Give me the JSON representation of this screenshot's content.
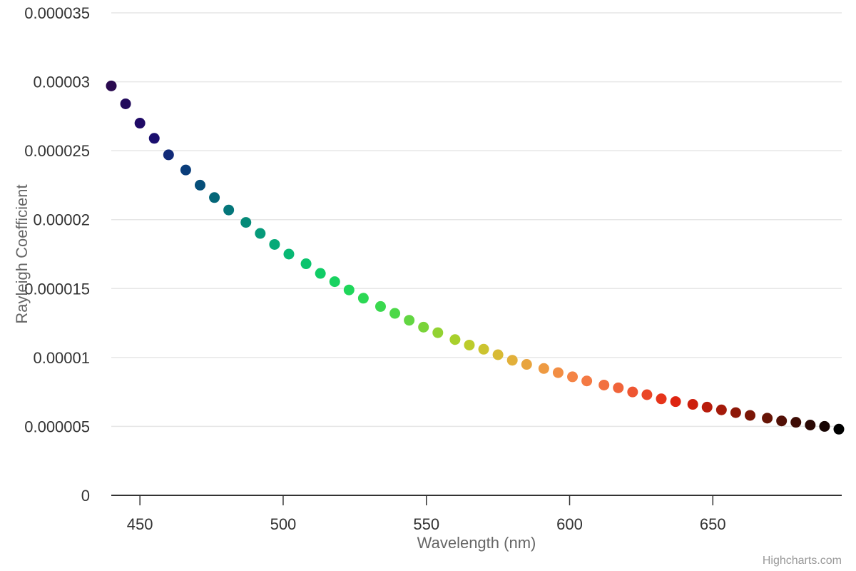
{
  "chart_data": {
    "type": "scatter",
    "xlabel": "Wavelength (nm)",
    "ylabel": "Rayleigh Coefficient",
    "xlim": [
      440,
      695
    ],
    "ylim": [
      0,
      3.5e-05
    ],
    "x_ticks": [
      {
        "value": 450,
        "label": "450"
      },
      {
        "value": 500,
        "label": "500"
      },
      {
        "value": 550,
        "label": "550"
      },
      {
        "value": 600,
        "label": "600"
      },
      {
        "value": 650,
        "label": "650"
      }
    ],
    "y_ticks": [
      {
        "value": 0,
        "label": "0"
      },
      {
        "value": 5e-06,
        "label": "0.000005"
      },
      {
        "value": 1e-05,
        "label": "0.00001"
      },
      {
        "value": 1.5e-05,
        "label": "0.000015"
      },
      {
        "value": 2e-05,
        "label": "0.00002"
      },
      {
        "value": 2.5e-05,
        "label": "0.000025"
      },
      {
        "value": 3e-05,
        "label": "0.00003"
      },
      {
        "value": 3.5e-05,
        "label": "0.000035"
      }
    ],
    "grid": "horizontal",
    "legend": "none",
    "credit": "Highcharts.com",
    "points": [
      {
        "x": 440,
        "y": 2.97e-05,
        "color": "#2a0a4f"
      },
      {
        "x": 445,
        "y": 2.84e-05,
        "color": "#220a5c"
      },
      {
        "x": 450,
        "y": 2.7e-05,
        "color": "#1f0a66"
      },
      {
        "x": 455,
        "y": 2.59e-05,
        "color": "#1a0f6e"
      },
      {
        "x": 460,
        "y": 2.47e-05,
        "color": "#112a78"
      },
      {
        "x": 466,
        "y": 2.36e-05,
        "color": "#0a3d7a"
      },
      {
        "x": 471,
        "y": 2.25e-05,
        "color": "#064f7a"
      },
      {
        "x": 476,
        "y": 2.16e-05,
        "color": "#046678"
      },
      {
        "x": 481,
        "y": 2.07e-05,
        "color": "#04767a"
      },
      {
        "x": 487,
        "y": 1.98e-05,
        "color": "#058a78"
      },
      {
        "x": 492,
        "y": 1.9e-05,
        "color": "#069a7a"
      },
      {
        "x": 497,
        "y": 1.82e-05,
        "color": "#07aa78"
      },
      {
        "x": 502,
        "y": 1.75e-05,
        "color": "#08b874"
      },
      {
        "x": 508,
        "y": 1.68e-05,
        "color": "#0cc46e"
      },
      {
        "x": 513,
        "y": 1.61e-05,
        "color": "#10cc66"
      },
      {
        "x": 518,
        "y": 1.55e-05,
        "color": "#18d260"
      },
      {
        "x": 523,
        "y": 1.49e-05,
        "color": "#1fd65a"
      },
      {
        "x": 528,
        "y": 1.43e-05,
        "color": "#2cd854"
      },
      {
        "x": 534,
        "y": 1.37e-05,
        "color": "#3ad84e"
      },
      {
        "x": 539,
        "y": 1.32e-05,
        "color": "#4cd848"
      },
      {
        "x": 544,
        "y": 1.27e-05,
        "color": "#62d642"
      },
      {
        "x": 549,
        "y": 1.22e-05,
        "color": "#7ad43a"
      },
      {
        "x": 554,
        "y": 1.18e-05,
        "color": "#92d232"
      },
      {
        "x": 560,
        "y": 1.13e-05,
        "color": "#a8d02c"
      },
      {
        "x": 565,
        "y": 1.09e-05,
        "color": "#bccc2c"
      },
      {
        "x": 570,
        "y": 1.06e-05,
        "color": "#ccc430"
      },
      {
        "x": 575,
        "y": 1.02e-05,
        "color": "#d8ba34"
      },
      {
        "x": 580,
        "y": 9.8e-06,
        "color": "#e2b03a"
      },
      {
        "x": 585,
        "y": 9.5e-06,
        "color": "#e8a43e"
      },
      {
        "x": 591,
        "y": 9.2e-06,
        "color": "#ee9a42"
      },
      {
        "x": 596,
        "y": 8.9e-06,
        "color": "#f28e44"
      },
      {
        "x": 601,
        "y": 8.6e-06,
        "color": "#f48446"
      },
      {
        "x": 606,
        "y": 8.3e-06,
        "color": "#f47a44"
      },
      {
        "x": 612,
        "y": 8e-06,
        "color": "#f27040"
      },
      {
        "x": 617,
        "y": 7.8e-06,
        "color": "#f0643a"
      },
      {
        "x": 622,
        "y": 7.5e-06,
        "color": "#ee5632"
      },
      {
        "x": 627,
        "y": 7.3e-06,
        "color": "#ea4626"
      },
      {
        "x": 632,
        "y": 7e-06,
        "color": "#e6341a"
      },
      {
        "x": 637,
        "y": 6.8e-06,
        "color": "#de2410"
      },
      {
        "x": 643,
        "y": 6.6e-06,
        "color": "#cc1e0c"
      },
      {
        "x": 648,
        "y": 6.4e-06,
        "color": "#b81c0c"
      },
      {
        "x": 653,
        "y": 6.2e-06,
        "color": "#a41a0a"
      },
      {
        "x": 658,
        "y": 6e-06,
        "color": "#8e1808"
      },
      {
        "x": 663,
        "y": 5.8e-06,
        "color": "#7a1606"
      },
      {
        "x": 669,
        "y": 5.6e-06,
        "color": "#661406"
      },
      {
        "x": 674,
        "y": 5.4e-06,
        "color": "#521006"
      },
      {
        "x": 679,
        "y": 5.3e-06,
        "color": "#3e0c04"
      },
      {
        "x": 684,
        "y": 5.1e-06,
        "color": "#2a0804"
      },
      {
        "x": 689,
        "y": 5e-06,
        "color": "#160402"
      },
      {
        "x": 694,
        "y": 4.8e-06,
        "color": "#000000"
      }
    ]
  }
}
